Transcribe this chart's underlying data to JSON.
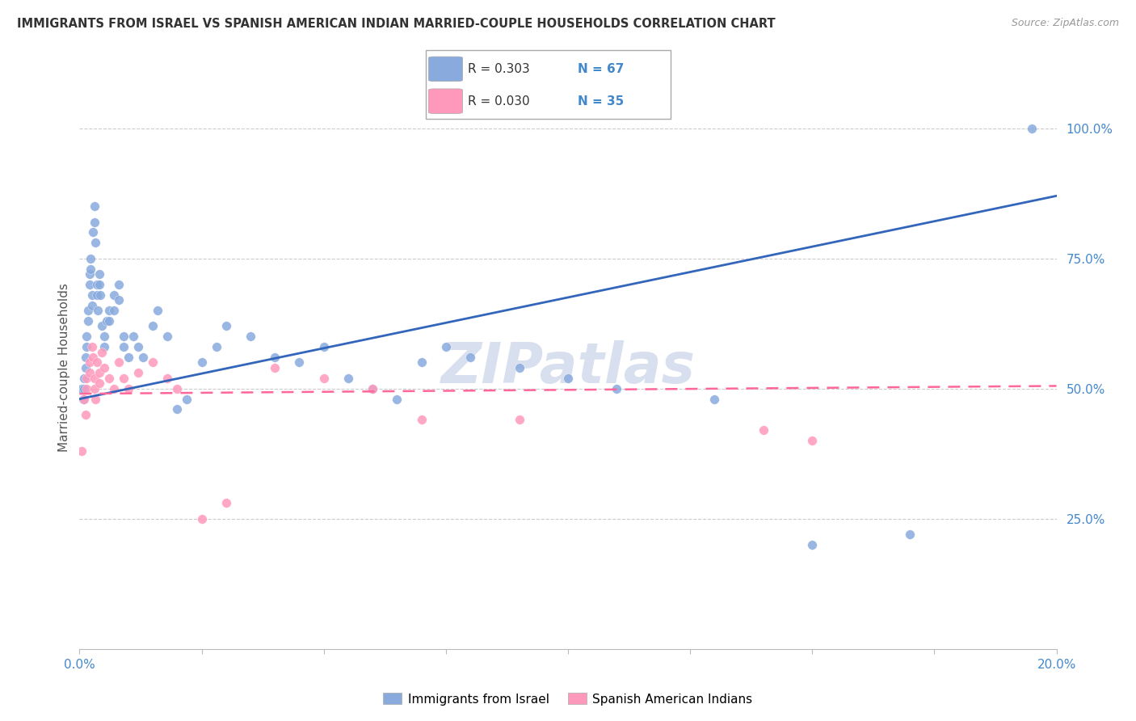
{
  "title": "IMMIGRANTS FROM ISRAEL VS SPANISH AMERICAN INDIAN MARRIED-COUPLE HOUSEHOLDS CORRELATION CHART",
  "source": "Source: ZipAtlas.com",
  "ylabel": "Married-couple Households",
  "right_yticks": [
    "100.0%",
    "75.0%",
    "50.0%",
    "25.0%"
  ],
  "right_ytick_vals": [
    1.0,
    0.75,
    0.5,
    0.25
  ],
  "legend_label1": "Immigrants from Israel",
  "legend_label2": "Spanish American Indians",
  "r1": "0.303",
  "n1": "67",
  "r2": "0.030",
  "n2": "35",
  "color_blue": "#88AADD",
  "color_pink": "#FF99BB",
  "color_blue_line": "#3366BB",
  "color_pink_line": "#FF6699",
  "color_axis_text": "#4488CC",
  "watermark": "ZIPatlas",
  "blue_scatter_x": [
    0.0005,
    0.0008,
    0.001,
    0.001,
    0.0012,
    0.0013,
    0.0015,
    0.0015,
    0.0017,
    0.0018,
    0.002,
    0.002,
    0.0022,
    0.0023,
    0.0025,
    0.0025,
    0.0027,
    0.003,
    0.003,
    0.0032,
    0.0035,
    0.0035,
    0.0038,
    0.004,
    0.004,
    0.0042,
    0.0045,
    0.005,
    0.005,
    0.0055,
    0.006,
    0.006,
    0.007,
    0.007,
    0.008,
    0.008,
    0.009,
    0.009,
    0.01,
    0.011,
    0.012,
    0.013,
    0.015,
    0.016,
    0.018,
    0.02,
    0.022,
    0.025,
    0.028,
    0.03,
    0.035,
    0.04,
    0.045,
    0.05,
    0.055,
    0.06,
    0.065,
    0.07,
    0.075,
    0.08,
    0.09,
    0.1,
    0.11,
    0.13,
    0.15,
    0.17,
    0.195
  ],
  "blue_scatter_y": [
    0.5,
    0.48,
    0.52,
    0.5,
    0.56,
    0.54,
    0.6,
    0.58,
    0.65,
    0.63,
    0.72,
    0.7,
    0.75,
    0.73,
    0.68,
    0.66,
    0.8,
    0.82,
    0.85,
    0.78,
    0.7,
    0.68,
    0.65,
    0.72,
    0.7,
    0.68,
    0.62,
    0.6,
    0.58,
    0.63,
    0.65,
    0.63,
    0.68,
    0.65,
    0.7,
    0.67,
    0.6,
    0.58,
    0.56,
    0.6,
    0.58,
    0.56,
    0.62,
    0.65,
    0.6,
    0.46,
    0.48,
    0.55,
    0.58,
    0.62,
    0.6,
    0.56,
    0.55,
    0.58,
    0.52,
    0.5,
    0.48,
    0.55,
    0.58,
    0.56,
    0.54,
    0.52,
    0.5,
    0.48,
    0.2,
    0.22,
    1.0
  ],
  "pink_scatter_x": [
    0.0005,
    0.001,
    0.0012,
    0.0015,
    0.0015,
    0.002,
    0.002,
    0.0025,
    0.0028,
    0.003,
    0.003,
    0.0032,
    0.0035,
    0.004,
    0.004,
    0.0045,
    0.005,
    0.006,
    0.007,
    0.008,
    0.009,
    0.01,
    0.012,
    0.015,
    0.018,
    0.02,
    0.025,
    0.03,
    0.04,
    0.05,
    0.06,
    0.07,
    0.09,
    0.14,
    0.15
  ],
  "pink_scatter_y": [
    0.38,
    0.48,
    0.45,
    0.52,
    0.5,
    0.55,
    0.53,
    0.58,
    0.56,
    0.52,
    0.5,
    0.48,
    0.55,
    0.53,
    0.51,
    0.57,
    0.54,
    0.52,
    0.5,
    0.55,
    0.52,
    0.5,
    0.53,
    0.55,
    0.52,
    0.5,
    0.25,
    0.28,
    0.54,
    0.52,
    0.5,
    0.44,
    0.44,
    0.42,
    0.4
  ],
  "blue_line_x": [
    0.0,
    0.2
  ],
  "blue_line_y": [
    0.48,
    0.87
  ],
  "pink_line_x": [
    0.0,
    0.2
  ],
  "pink_line_y": [
    0.49,
    0.505
  ],
  "xlim": [
    0.0,
    0.2
  ],
  "ylim": [
    0.0,
    1.08
  ],
  "xtick_positions": [
    0.0,
    0.025,
    0.05,
    0.075,
    0.1,
    0.125,
    0.15,
    0.175,
    0.2
  ]
}
